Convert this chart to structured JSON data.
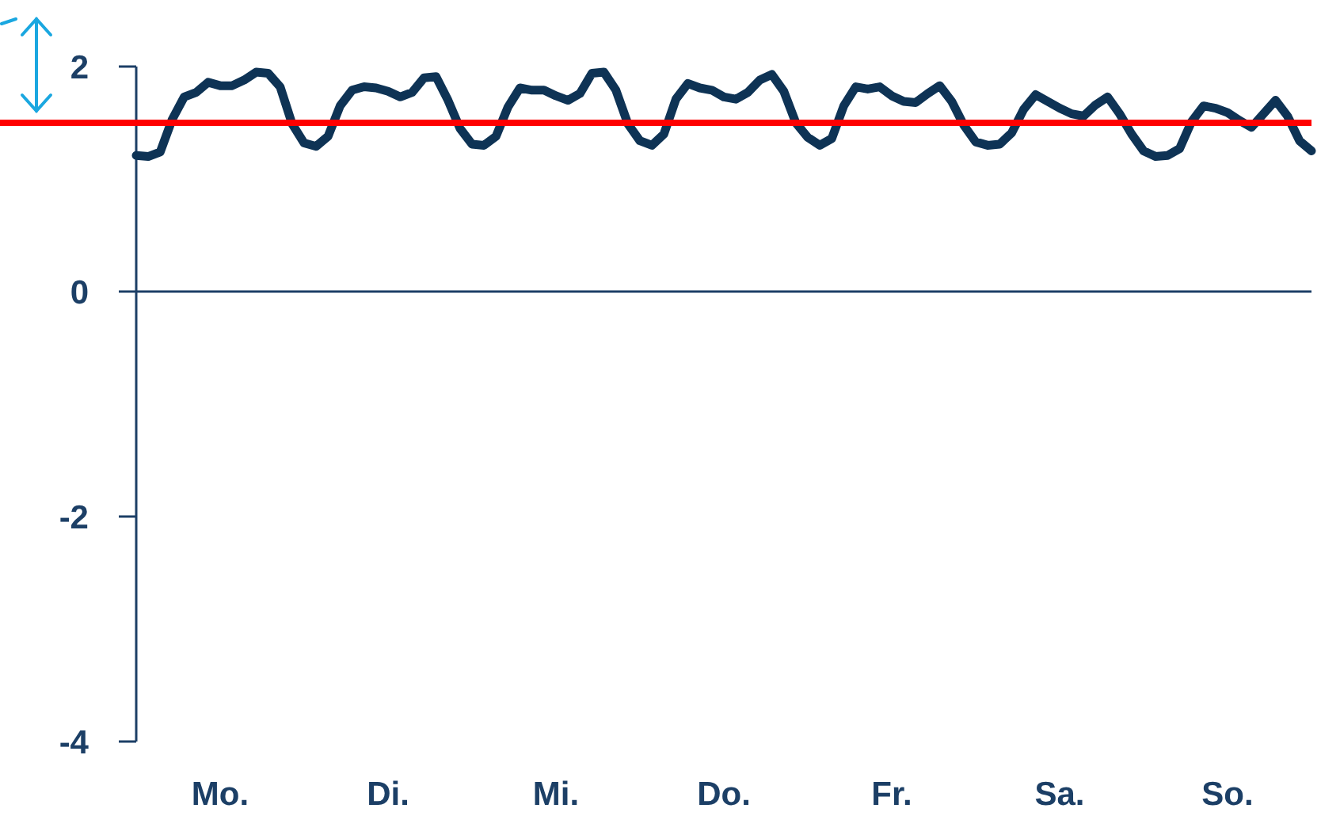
{
  "chart_data": {
    "type": "line",
    "ylim": [
      -4,
      2
    ],
    "yticks": [
      -4,
      -2,
      0,
      2
    ],
    "categories": [
      null,
      null,
      null,
      null,
      null,
      null,
      null,
      "Mo.",
      null,
      null,
      null,
      null,
      null,
      null,
      null,
      null,
      null,
      null,
      null,
      null,
      null,
      "Di.",
      null,
      null,
      null,
      null,
      null,
      null,
      null,
      null,
      null,
      null,
      null,
      null,
      null,
      "Mi.",
      null,
      null,
      null,
      null,
      null,
      null,
      null,
      null,
      null,
      null,
      null,
      null,
      null,
      "Do.",
      null,
      null,
      null,
      null,
      null,
      null,
      null,
      null,
      null,
      null,
      null,
      null,
      null,
      "Fr.",
      null,
      null,
      null,
      null,
      null,
      null,
      null,
      null,
      null,
      null,
      null,
      null,
      null,
      "Sa.",
      null,
      null,
      null,
      null,
      null,
      null,
      null,
      null,
      null,
      null,
      null,
      null,
      null,
      "So.",
      null,
      null,
      null,
      null,
      null,
      null,
      null
    ],
    "grid": false,
    "marker": "none",
    "line_style": "solid",
    "ref_lines": [
      {
        "axis": "y",
        "value": 0,
        "color": "#1c3f66",
        "line_style": "solid"
      },
      {
        "axis": "y",
        "value": 1.5,
        "color": "#ff0000",
        "line_style": "solid"
      }
    ],
    "series": [
      {
        "color": "#0e3355",
        "values": [
          1.21,
          1.2,
          1.24,
          1.53,
          1.73,
          1.77,
          1.86,
          1.83,
          1.83,
          1.88,
          1.95,
          1.94,
          1.82,
          1.49,
          1.32,
          1.29,
          1.38,
          1.65,
          1.79,
          1.82,
          1.81,
          1.78,
          1.73,
          1.77,
          1.9,
          1.91,
          1.7,
          1.45,
          1.31,
          1.3,
          1.38,
          1.64,
          1.81,
          1.79,
          1.79,
          1.74,
          1.7,
          1.76,
          1.94,
          1.95,
          1.79,
          1.49,
          1.34,
          1.3,
          1.4,
          1.71,
          1.85,
          1.81,
          1.79,
          1.73,
          1.71,
          1.77,
          1.88,
          1.93,
          1.78,
          1.5,
          1.37,
          1.3,
          1.36,
          1.65,
          1.82,
          1.8,
          1.82,
          1.74,
          1.69,
          1.68,
          1.76,
          1.83,
          1.69,
          1.48,
          1.33,
          1.3,
          1.31,
          1.41,
          1.62,
          1.75,
          1.69,
          1.63,
          1.58,
          1.56,
          1.66,
          1.73,
          1.58,
          1.4,
          1.25,
          1.2,
          1.21,
          1.27,
          1.51,
          1.65,
          1.63,
          1.59,
          1.52,
          1.46,
          1.58,
          1.7,
          1.56,
          1.34,
          1.25
        ]
      }
    ]
  }
}
